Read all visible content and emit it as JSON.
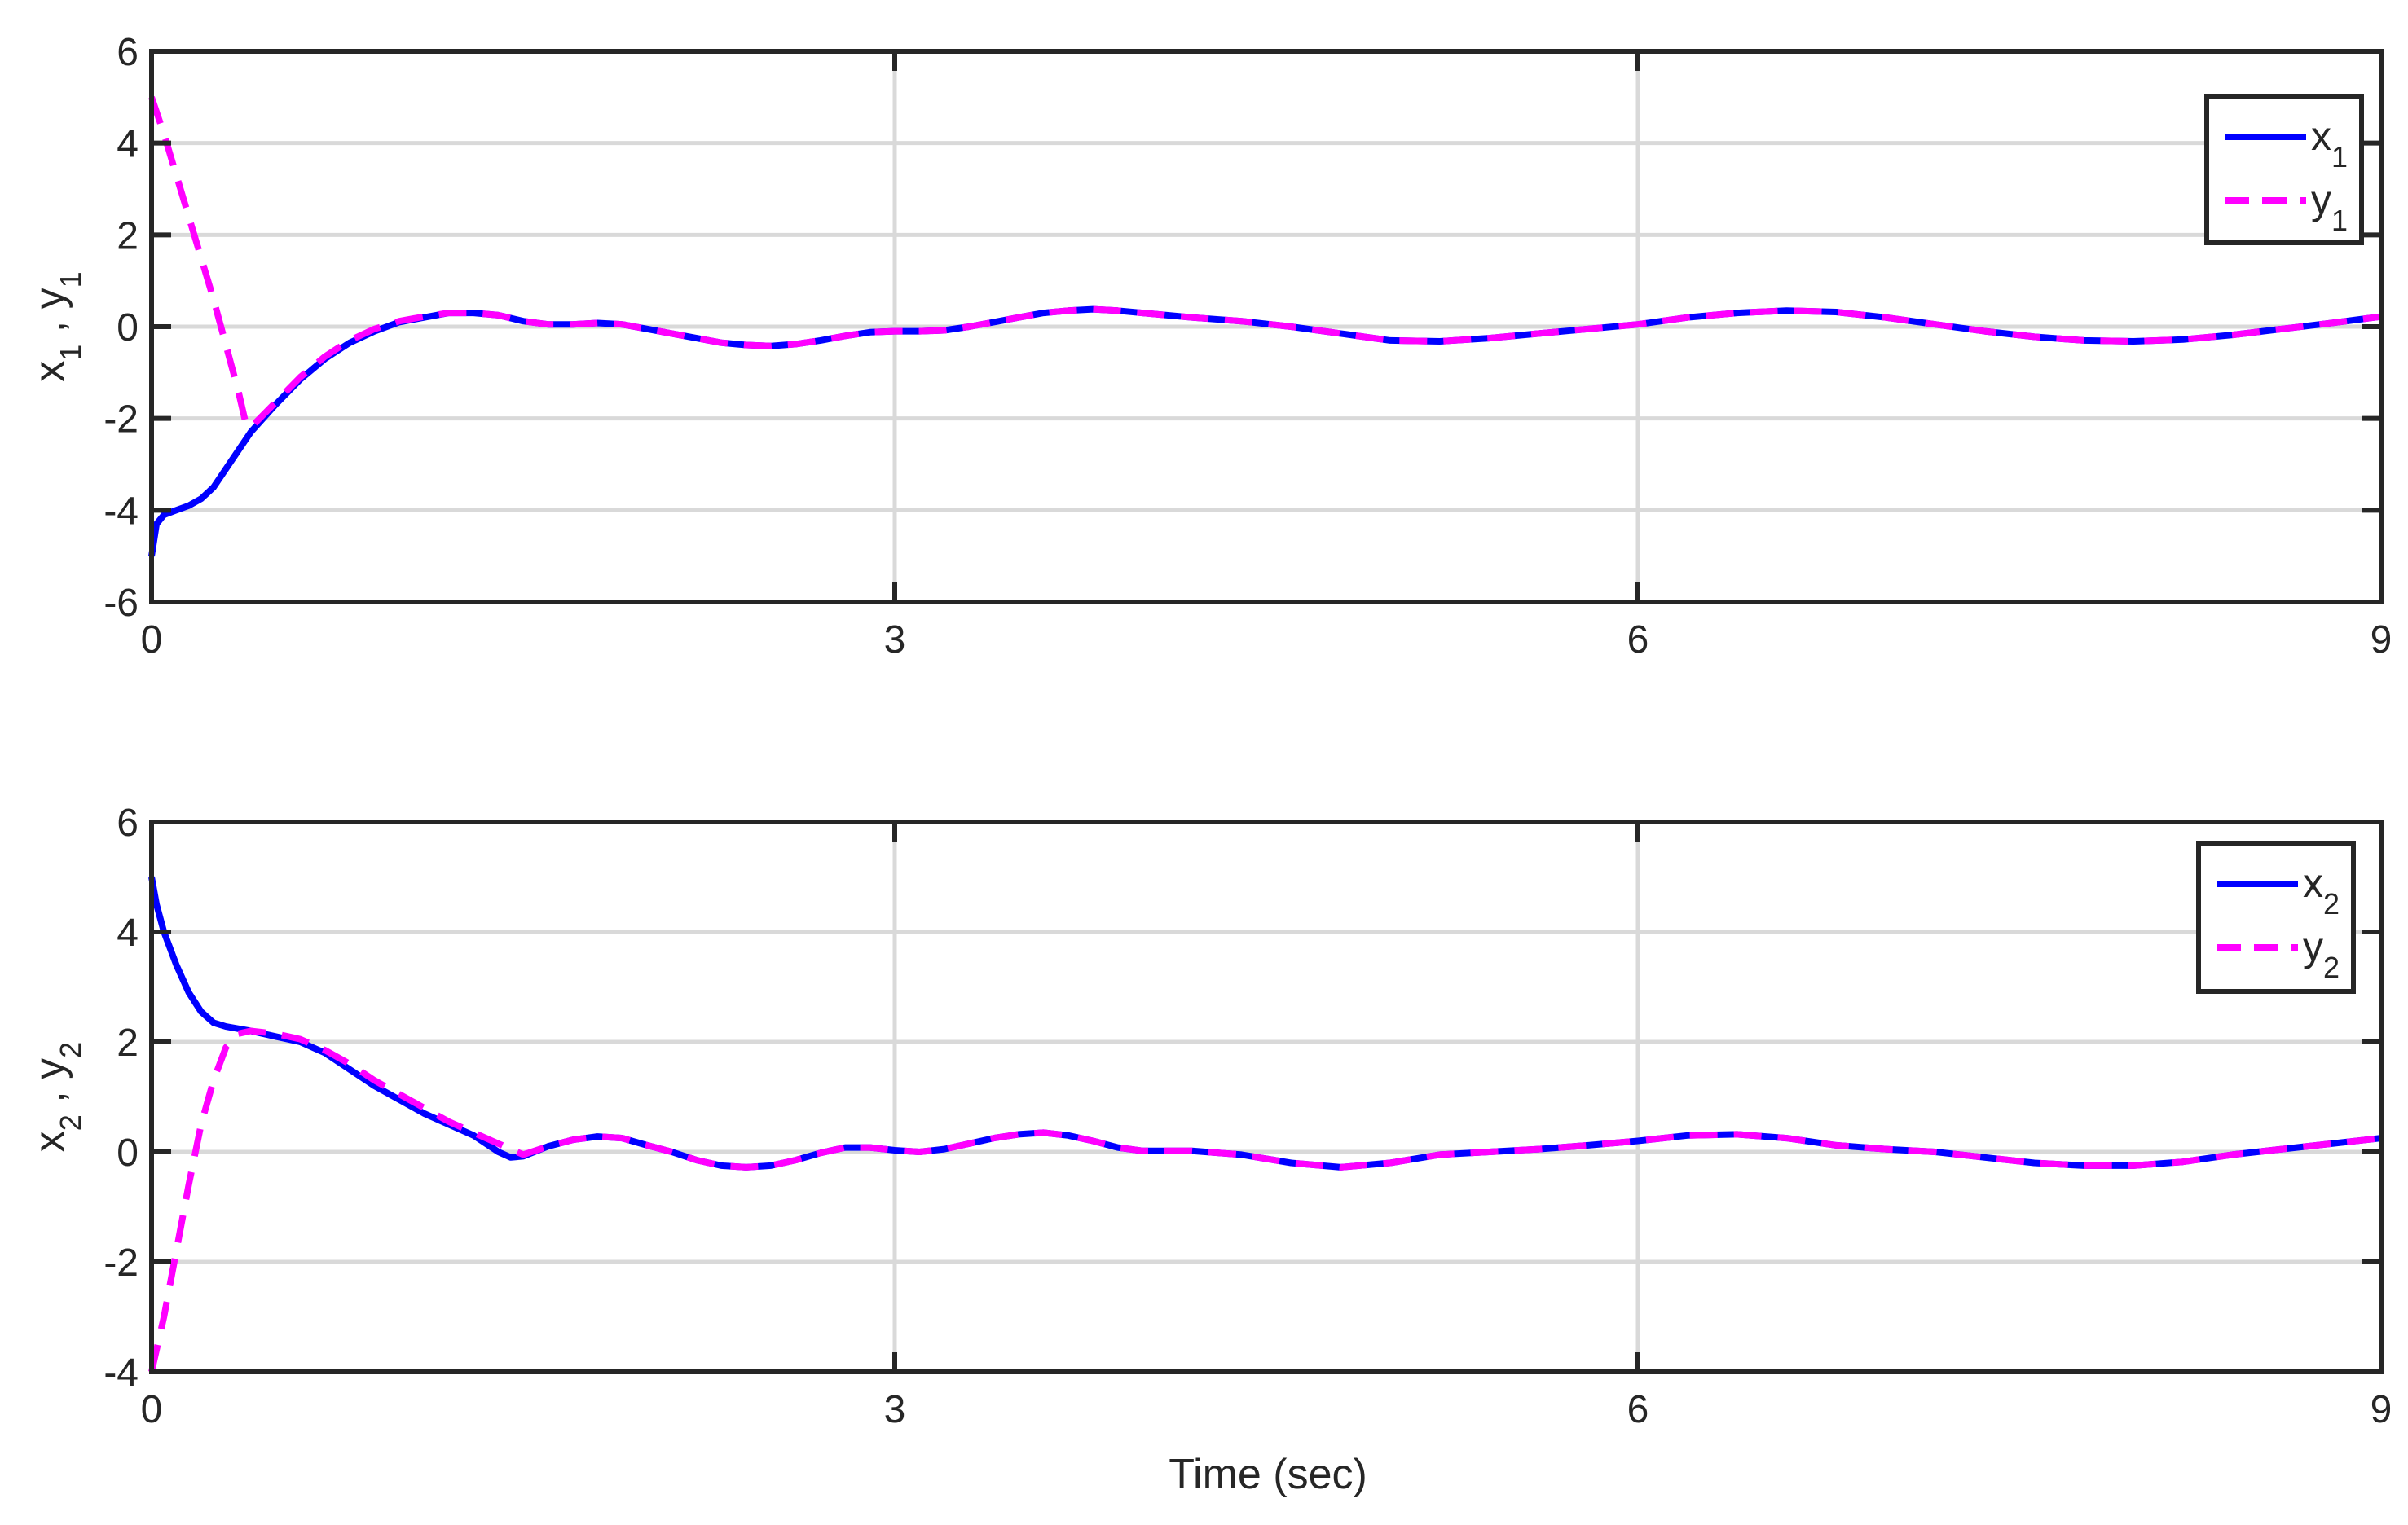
{
  "xlabel": "Time (sec)",
  "colors": {
    "x_series": "#0000ff",
    "y_series": "#ff00ff",
    "axes": "#262626",
    "grid": "#d9d9d9"
  },
  "chart_data": [
    {
      "type": "line",
      "ylabel": {
        "a": "x",
        "a_sub": "1",
        "sep": " ,  ",
        "b": "y",
        "b_sub": "1"
      },
      "xlim": [
        0,
        9
      ],
      "ylim": [
        -6,
        6
      ],
      "xticks": [
        "0",
        "3",
        "6",
        "9"
      ],
      "yticks": [
        "-6",
        "-4",
        "-2",
        "0",
        "2",
        "4",
        "6"
      ],
      "grid": true,
      "legend_position": "top-right",
      "series": [
        {
          "name": "x",
          "name_sub": "1",
          "style": "solid",
          "color": "#0000ff",
          "x": [
            0,
            0.02,
            0.05,
            0.1,
            0.15,
            0.2,
            0.25,
            0.3,
            0.35,
            0.4,
            0.5,
            0.6,
            0.7,
            0.8,
            0.9,
            1.0,
            1.1,
            1.2,
            1.3,
            1.4,
            1.5,
            1.6,
            1.7,
            1.8,
            1.9,
            2.0,
            2.1,
            2.2,
            2.3,
            2.4,
            2.5,
            2.6,
            2.7,
            2.8,
            2.9,
            3.0,
            3.1,
            3.2,
            3.3,
            3.4,
            3.5,
            3.6,
            3.7,
            3.8,
            3.9,
            4.0,
            4.2,
            4.4,
            4.6,
            4.8,
            5.0,
            5.2,
            5.4,
            5.6,
            5.8,
            6.0,
            6.2,
            6.4,
            6.6,
            6.8,
            7.0,
            7.2,
            7.4,
            7.6,
            7.8,
            8.0,
            8.2,
            8.4,
            8.6,
            8.8,
            9.0
          ],
          "y": [
            -5.0,
            -4.3,
            -4.1,
            -4.0,
            -3.9,
            -3.75,
            -3.5,
            -3.1,
            -2.7,
            -2.3,
            -1.7,
            -1.15,
            -0.7,
            -0.35,
            -0.1,
            0.1,
            0.2,
            0.3,
            0.3,
            0.25,
            0.12,
            0.05,
            0.05,
            0.08,
            0.05,
            -0.05,
            -0.15,
            -0.25,
            -0.35,
            -0.4,
            -0.42,
            -0.38,
            -0.3,
            -0.2,
            -0.12,
            -0.1,
            -0.1,
            -0.08,
            0.0,
            0.1,
            0.2,
            0.3,
            0.35,
            0.38,
            0.35,
            0.3,
            0.2,
            0.12,
            0.0,
            -0.15,
            -0.3,
            -0.32,
            -0.25,
            -0.15,
            -0.05,
            0.05,
            0.2,
            0.3,
            0.35,
            0.32,
            0.2,
            0.05,
            -0.1,
            -0.22,
            -0.3,
            -0.32,
            -0.28,
            -0.18,
            -0.05,
            0.08,
            0.22
          ]
        },
        {
          "name": "y",
          "name_sub": "1",
          "style": "dashed",
          "color": "#ff00ff",
          "x": [
            0,
            0.05,
            0.1,
            0.15,
            0.2,
            0.25,
            0.3,
            0.35,
            0.38,
            0.4,
            0.5,
            0.6,
            0.7,
            0.8,
            0.9,
            1.0,
            1.1,
            1.2,
            1.3,
            1.4,
            1.5,
            1.6,
            1.7,
            1.8,
            1.9,
            2.0,
            2.1,
            2.2,
            2.3,
            2.4,
            2.5,
            2.6,
            2.7,
            2.8,
            2.9,
            3.0,
            3.1,
            3.2,
            3.3,
            3.4,
            3.5,
            3.6,
            3.7,
            3.8,
            3.9,
            4.0,
            4.2,
            4.4,
            4.6,
            4.8,
            5.0,
            5.2,
            5.4,
            5.6,
            5.8,
            6.0,
            6.2,
            6.4,
            6.6,
            6.8,
            7.0,
            7.2,
            7.4,
            7.6,
            7.8,
            8.0,
            8.2,
            8.4,
            8.6,
            8.8,
            9.0
          ],
          "y": [
            5.0,
            4.2,
            3.3,
            2.4,
            1.5,
            0.6,
            -0.4,
            -1.4,
            -2.1,
            -2.2,
            -1.65,
            -1.1,
            -0.65,
            -0.3,
            -0.05,
            0.12,
            0.22,
            0.3,
            0.3,
            0.25,
            0.12,
            0.05,
            0.05,
            0.08,
            0.05,
            -0.05,
            -0.15,
            -0.25,
            -0.35,
            -0.4,
            -0.42,
            -0.38,
            -0.3,
            -0.2,
            -0.12,
            -0.1,
            -0.1,
            -0.08,
            0.0,
            0.1,
            0.2,
            0.3,
            0.35,
            0.38,
            0.35,
            0.3,
            0.2,
            0.12,
            0.0,
            -0.15,
            -0.3,
            -0.32,
            -0.25,
            -0.15,
            -0.05,
            0.05,
            0.2,
            0.3,
            0.35,
            0.32,
            0.2,
            0.05,
            -0.1,
            -0.22,
            -0.3,
            -0.32,
            -0.28,
            -0.18,
            -0.05,
            0.08,
            0.22
          ]
        }
      ]
    },
    {
      "type": "line",
      "ylabel": {
        "a": "x",
        "a_sub": "2",
        "sep": " , ",
        "b": "y",
        "b_sub": "2"
      },
      "xlim": [
        0,
        9
      ],
      "ylim": [
        -4,
        6
      ],
      "xticks": [
        "0",
        "3",
        "6",
        "9"
      ],
      "yticks": [
        "-4",
        "-2",
        "0",
        "2",
        "4",
        "6"
      ],
      "grid": true,
      "legend_position": "top-right",
      "series": [
        {
          "name": "x",
          "name_sub": "2",
          "style": "solid",
          "color": "#0000ff",
          "x": [
            0,
            0.02,
            0.05,
            0.1,
            0.15,
            0.2,
            0.25,
            0.3,
            0.4,
            0.5,
            0.6,
            0.7,
            0.8,
            0.9,
            1.0,
            1.1,
            1.2,
            1.3,
            1.4,
            1.45,
            1.5,
            1.6,
            1.7,
            1.8,
            1.9,
            2.0,
            2.1,
            2.2,
            2.3,
            2.4,
            2.5,
            2.6,
            2.7,
            2.8,
            2.9,
            3.0,
            3.1,
            3.2,
            3.3,
            3.4,
            3.5,
            3.6,
            3.7,
            3.8,
            3.9,
            4.0,
            4.2,
            4.4,
            4.6,
            4.8,
            5.0,
            5.2,
            5.4,
            5.6,
            5.8,
            6.0,
            6.2,
            6.4,
            6.6,
            6.8,
            7.0,
            7.2,
            7.4,
            7.6,
            7.8,
            8.0,
            8.2,
            8.4,
            8.6,
            8.8,
            9.0
          ],
          "y": [
            5.0,
            4.5,
            4.0,
            3.4,
            2.9,
            2.55,
            2.35,
            2.28,
            2.2,
            2.1,
            2.0,
            1.8,
            1.5,
            1.2,
            0.95,
            0.7,
            0.5,
            0.3,
            0.0,
            -0.1,
            -0.08,
            0.1,
            0.22,
            0.28,
            0.25,
            0.12,
            0.0,
            -0.15,
            -0.25,
            -0.28,
            -0.25,
            -0.15,
            -0.02,
            0.08,
            0.08,
            0.03,
            0.0,
            0.05,
            0.15,
            0.25,
            0.32,
            0.35,
            0.3,
            0.2,
            0.08,
            0.02,
            0.02,
            -0.05,
            -0.2,
            -0.28,
            -0.2,
            -0.05,
            0.0,
            0.05,
            0.12,
            0.2,
            0.3,
            0.32,
            0.25,
            0.12,
            0.05,
            0.0,
            -0.1,
            -0.2,
            -0.25,
            -0.25,
            -0.18,
            -0.05,
            0.05,
            0.15,
            0.25
          ]
        },
        {
          "name": "y",
          "name_sub": "2",
          "style": "dashed",
          "color": "#ff00ff",
          "x": [
            0,
            0.05,
            0.1,
            0.15,
            0.2,
            0.25,
            0.3,
            0.35,
            0.4,
            0.5,
            0.6,
            0.7,
            0.8,
            0.9,
            1.0,
            1.1,
            1.2,
            1.3,
            1.4,
            1.45,
            1.5,
            1.6,
            1.7,
            1.8,
            1.9,
            2.0,
            2.1,
            2.2,
            2.3,
            2.4,
            2.5,
            2.6,
            2.7,
            2.8,
            2.9,
            3.0,
            3.1,
            3.2,
            3.3,
            3.4,
            3.5,
            3.6,
            3.7,
            3.8,
            3.9,
            4.0,
            4.2,
            4.4,
            4.6,
            4.8,
            5.0,
            5.2,
            5.4,
            5.6,
            5.8,
            6.0,
            6.2,
            6.4,
            6.6,
            6.8,
            7.0,
            7.2,
            7.4,
            7.6,
            7.8,
            8.0,
            8.2,
            8.4,
            8.6,
            8.8,
            9.0
          ],
          "y": [
            -4.0,
            -3.0,
            -1.8,
            -0.6,
            0.5,
            1.3,
            1.9,
            2.15,
            2.2,
            2.15,
            2.05,
            1.85,
            1.6,
            1.3,
            1.05,
            0.8,
            0.55,
            0.35,
            0.15,
            0.05,
            -0.05,
            0.1,
            0.22,
            0.28,
            0.25,
            0.12,
            0.0,
            -0.15,
            -0.25,
            -0.28,
            -0.25,
            -0.15,
            -0.02,
            0.08,
            0.08,
            0.03,
            0.0,
            0.05,
            0.15,
            0.25,
            0.32,
            0.35,
            0.3,
            0.2,
            0.08,
            0.02,
            0.02,
            -0.05,
            -0.2,
            -0.28,
            -0.2,
            -0.05,
            0.0,
            0.05,
            0.12,
            0.2,
            0.3,
            0.32,
            0.25,
            0.12,
            0.05,
            0.0,
            -0.1,
            -0.2,
            -0.25,
            -0.25,
            -0.18,
            -0.05,
            0.05,
            0.15,
            0.25
          ]
        }
      ]
    }
  ]
}
